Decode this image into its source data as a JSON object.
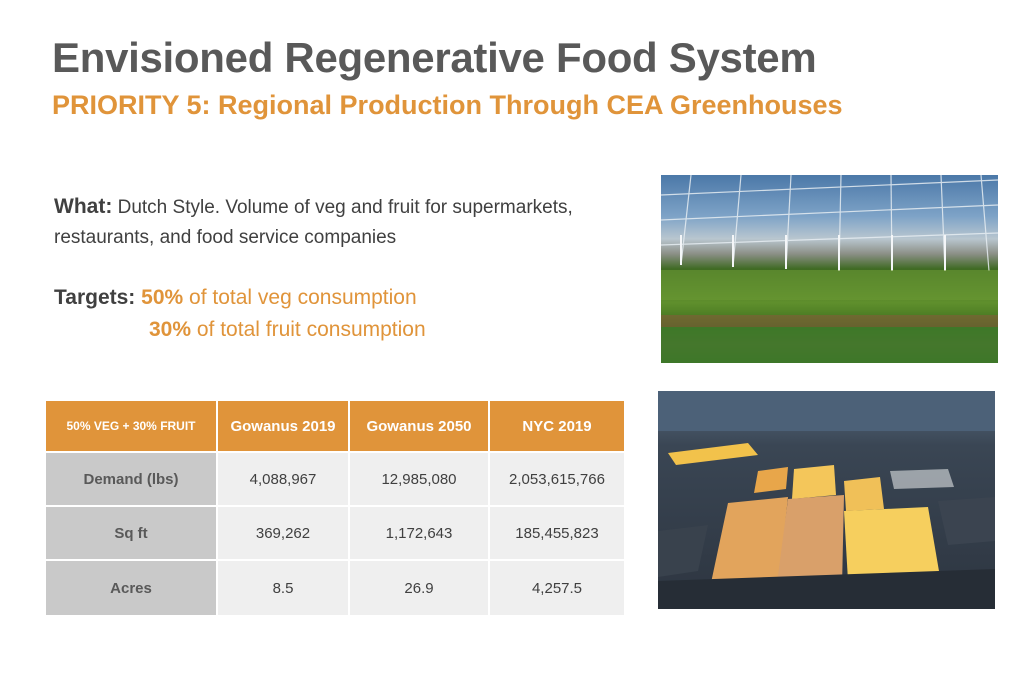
{
  "header": {
    "title": "Envisioned Regenerative Food System",
    "subtitle": "PRIORITY 5: Regional Production Through CEA Greenhouses"
  },
  "what": {
    "label": "What:",
    "text": "Dutch Style. Volume of veg and fruit for supermarkets, restaurants, and food service companies"
  },
  "targets": {
    "label": "Targets:",
    "veg_pct": "50%",
    "veg_text": "of total veg consumption",
    "fruit_pct": "30%",
    "fruit_text": "of total fruit consumption"
  },
  "table": {
    "corner": "50% VEG + 30% FRUIT",
    "columns": [
      "Gowanus 2019",
      "Gowanus 2050",
      "NYC 2019"
    ],
    "rows": [
      {
        "label": "Demand (lbs)",
        "values": [
          "4,088,967",
          "12,985,080",
          "2,053,615,766"
        ]
      },
      {
        "label": "Sq ft",
        "values": [
          "369,262",
          "1,172,643",
          "185,455,823"
        ]
      },
      {
        "label": "Acres",
        "values": [
          "8.5",
          "26.9",
          "4,257.5"
        ]
      }
    ]
  },
  "colors": {
    "accent": "#e0943a",
    "title_gray": "#595959",
    "row_header_gray": "#c9c9c9",
    "cell_gray": "#efefef"
  }
}
